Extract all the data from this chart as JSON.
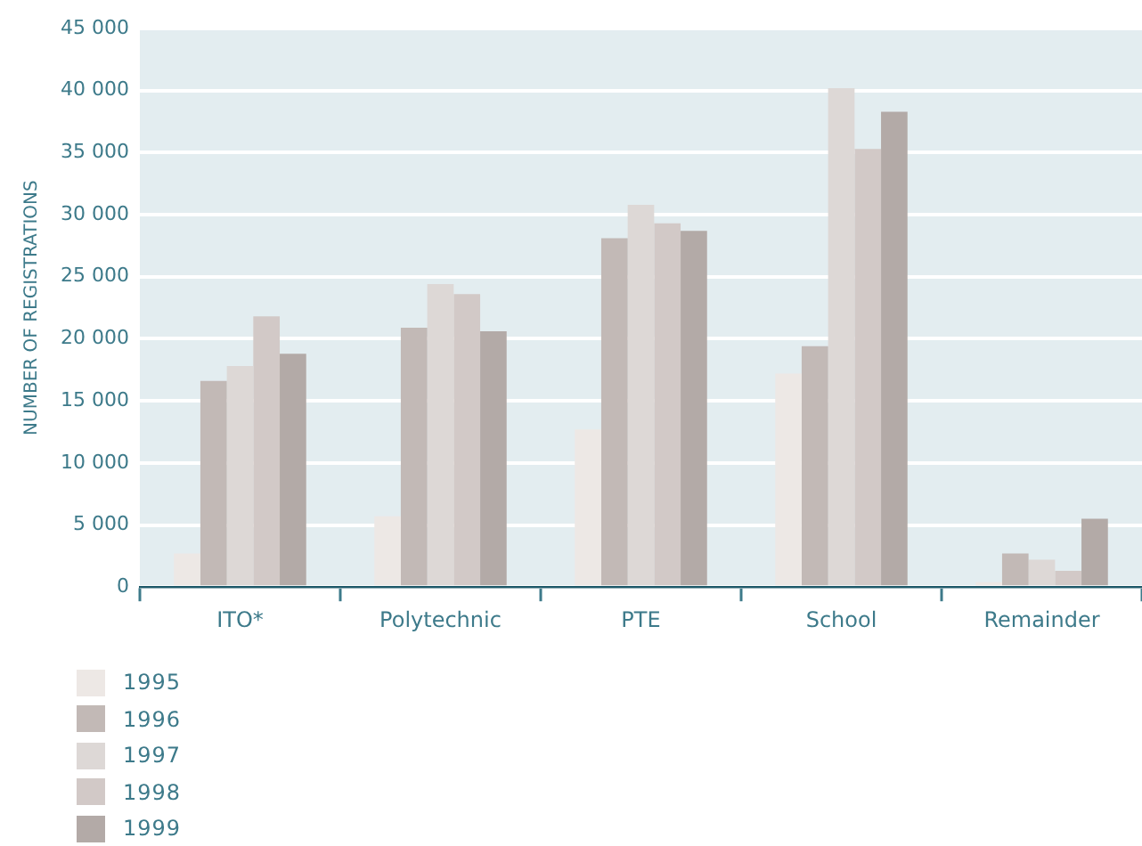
{
  "chart_data": {
    "type": "bar",
    "ylabel": "NUMBER OF REGISTRATIONS",
    "categories": [
      "ITO*",
      "Polytechnic",
      "PTE",
      "School",
      "Remainder"
    ],
    "series": [
      {
        "name": "1995",
        "color": "#ede8e5",
        "values": [
          2700,
          5700,
          12700,
          17200,
          400
        ]
      },
      {
        "name": "1996",
        "color": "#c2b9b6",
        "values": [
          16600,
          20900,
          28100,
          19400,
          2700
        ]
      },
      {
        "name": "1997",
        "color": "#ddd8d6",
        "values": [
          17800,
          24400,
          30800,
          40200,
          2200
        ]
      },
      {
        "name": "1998",
        "color": "#d2c9c7",
        "values": [
          21800,
          23600,
          29300,
          35300,
          1300
        ]
      },
      {
        "name": "1999",
        "color": "#b3aaa7",
        "values": [
          18800,
          20600,
          28700,
          38300,
          5500
        ]
      }
    ],
    "ylim": [
      0,
      45000
    ],
    "yticks": [
      {
        "value": 0,
        "label": "0"
      },
      {
        "value": 5000,
        "label": "5 000"
      },
      {
        "value": 10000,
        "label": "10 000"
      },
      {
        "value": 15000,
        "label": "15 000"
      },
      {
        "value": 20000,
        "label": "20 000"
      },
      {
        "value": 25000,
        "label": "25 000"
      },
      {
        "value": 30000,
        "label": "30 000"
      },
      {
        "value": 35000,
        "label": "35 000"
      },
      {
        "value": 40000,
        "label": "40 000"
      },
      {
        "value": 45000,
        "label": "45 000"
      }
    ],
    "grid": "y",
    "legend": "bottom left"
  }
}
